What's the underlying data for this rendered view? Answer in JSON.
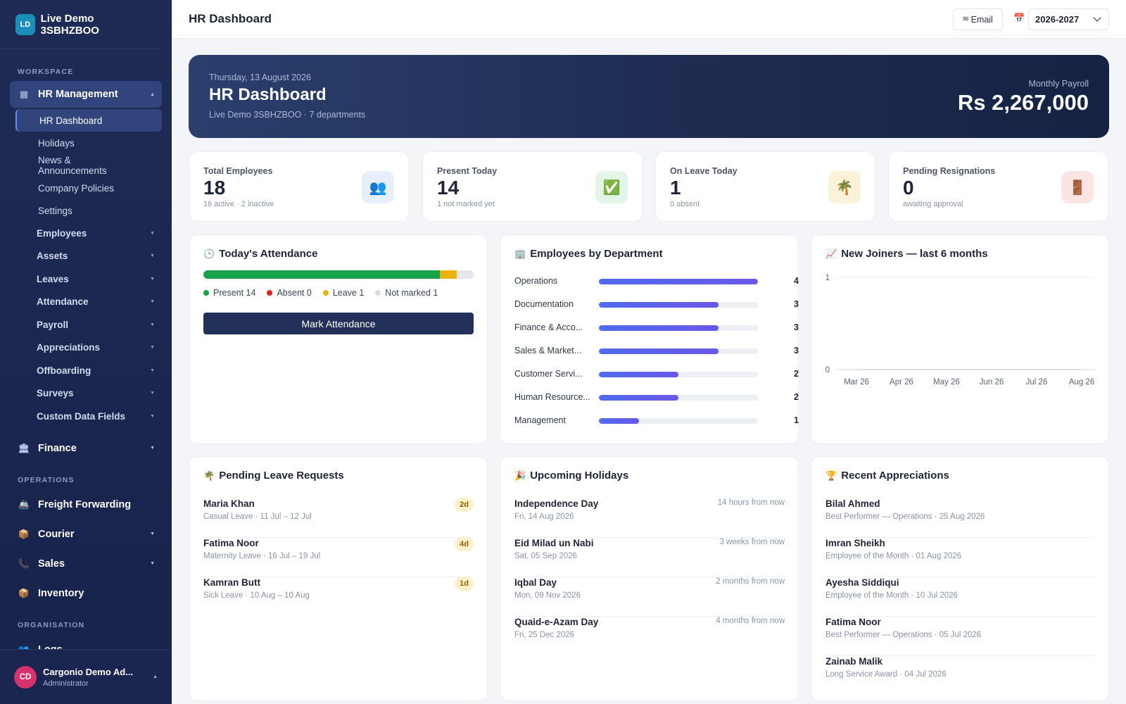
{
  "brand": {
    "initials": "LD",
    "name": "Live Demo 3SBHZBOO"
  },
  "sidebar": {
    "workspace_label": "WORKSPACE",
    "hr_group": {
      "icon": "building-icon",
      "label": "HR Management"
    },
    "hr_items": [
      "HR Dashboard",
      "Holidays",
      "News & Announcements",
      "Company Policies",
      "Settings"
    ],
    "hr_subgroups": [
      "Employees",
      "Assets",
      "Leaves",
      "Attendance",
      "Payroll",
      "Appreciations",
      "Offboarding",
      "Surveys",
      "Custom Data Fields"
    ],
    "finance": {
      "label": "Finance"
    },
    "operations_label": "OPERATIONS",
    "operations": [
      "Freight Forwarding",
      "Courier",
      "Sales",
      "Inventory"
    ],
    "organisation_label": "ORGANISATION",
    "organisation": [
      "Logs"
    ]
  },
  "user": {
    "initials": "CD",
    "name": "Cargonio Demo Ad...",
    "role": "Administrator"
  },
  "topbar": {
    "title": "HR Dashboard",
    "email_label": "Email",
    "year": "2026-2027"
  },
  "hero": {
    "date": "Thursday, 13 August 2026",
    "title": "HR Dashboard",
    "subtitle": "Live Demo 3SBHZBOO · 7 departments",
    "payroll_label": "Monthly Payroll",
    "payroll_value": "Rs 2,267,000"
  },
  "stats": [
    {
      "label": "Total Employees",
      "value": "18",
      "sub": "16 active · 2 inactive",
      "icon": "👥",
      "bg": "#e6effb"
    },
    {
      "label": "Present Today",
      "value": "14",
      "sub": "1 not marked yet",
      "icon": "✅",
      "bg": "#e3f5e7"
    },
    {
      "label": "On Leave Today",
      "value": "1",
      "sub": "0 absent",
      "icon": "🌴",
      "bg": "#fcf2d9"
    },
    {
      "label": "Pending Resignations",
      "value": "0",
      "sub": "awaiting approval",
      "icon": "🚪",
      "bg": "#fbe4e4"
    }
  ],
  "attendance": {
    "title": "Today's Attendance",
    "present_label": "Present 14",
    "absent_label": "Absent 0",
    "leave_label": "Leave 1",
    "unmarked_label": "Not marked 1",
    "present": 14,
    "absent": 0,
    "leave": 1,
    "unmarked": 1,
    "colors": {
      "present": "#16a34a",
      "absent": "#dc2626",
      "leave": "#eab308",
      "unmarked": "#e4e7ee"
    },
    "button": "Mark Attendance"
  },
  "departments": {
    "title": "Employees by Department",
    "max": 4,
    "items": [
      {
        "name": "Operations",
        "count": 4
      },
      {
        "name": "Documentation",
        "count": 3
      },
      {
        "name": "Finance & Acco...",
        "count": 3
      },
      {
        "name": "Sales & Market...",
        "count": 3
      },
      {
        "name": "Customer Servi...",
        "count": 2
      },
      {
        "name": "Human Resource...",
        "count": 2
      },
      {
        "name": "Management",
        "count": 1
      }
    ]
  },
  "joiners": {
    "title": "New Joiners — last 6 months",
    "y_ticks": [
      "1",
      "0"
    ],
    "ylim": [
      0,
      1
    ],
    "categories": [
      "Mar 26",
      "Apr 26",
      "May 26",
      "Jun 26",
      "Jul 26",
      "Aug 26"
    ],
    "values": [
      0,
      0,
      0,
      0,
      0,
      0
    ]
  },
  "leave_requests": {
    "title": "Pending Leave Requests",
    "items": [
      {
        "name": "Maria Khan",
        "detail": "Casual Leave · 11 Jul – 12 Jul",
        "badge": "2d"
      },
      {
        "name": "Fatima Noor",
        "detail": "Maternity Leave · 16 Jul – 19 Jul",
        "badge": "4d"
      },
      {
        "name": "Kamran Butt",
        "detail": "Sick Leave · 10 Aug – 10 Aug",
        "badge": "1d"
      }
    ]
  },
  "holidays": {
    "title": "Upcoming Holidays",
    "items": [
      {
        "name": "Independence Day",
        "date": "Fri, 14 Aug 2026",
        "when": "14 hours from now"
      },
      {
        "name": "Eid Milad un Nabi",
        "date": "Sat, 05 Sep 2026",
        "when": "3 weeks from now"
      },
      {
        "name": "Iqbal Day",
        "date": "Mon, 09 Nov 2026",
        "when": "2 months from now"
      },
      {
        "name": "Quaid-e-Azam Day",
        "date": "Fri, 25 Dec 2026",
        "when": "4 months from now"
      }
    ]
  },
  "appreciations": {
    "title": "Recent Appreciations",
    "items": [
      {
        "name": "Bilal Ahmed",
        "detail": "Best Performer — Operations · 25 Aug 2026"
      },
      {
        "name": "Imran Sheikh",
        "detail": "Employee of the Month · 01 Aug 2026"
      },
      {
        "name": "Ayesha Siddiqui",
        "detail": "Employee of the Month · 10 Jul 2026"
      },
      {
        "name": "Fatima Noor",
        "detail": "Best Performer — Operations · 05 Jul 2026"
      },
      {
        "name": "Zainab Malik",
        "detail": "Long Service Award · 04 Jul 2026"
      }
    ]
  }
}
